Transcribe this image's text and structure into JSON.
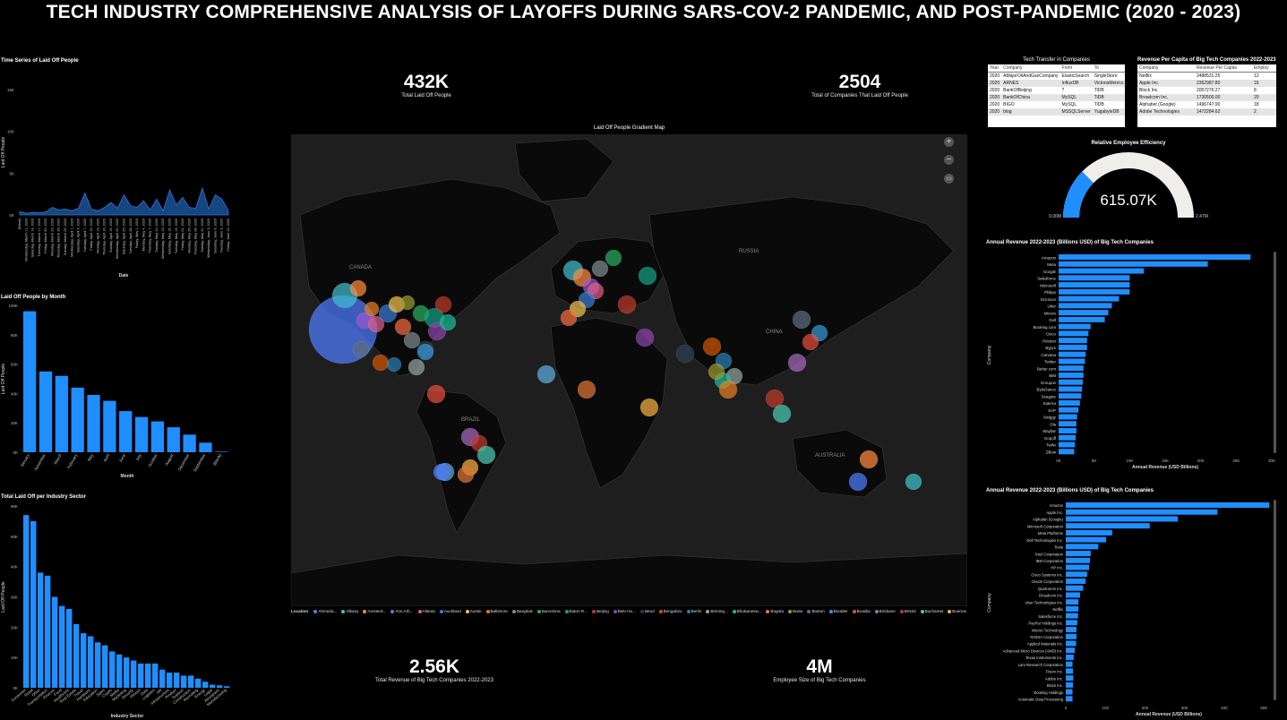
{
  "title": "TECH INDUSTRY COMPREHENSIVE ANALYSIS OF LAYOFFS DURING SARS-COV-2 PANDEMIC, AND POST-PANDEMIC (2020 - 2023)",
  "kpis": {
    "total_laid_off": {
      "value": "432K",
      "label": "Total Laid Off People"
    },
    "companies": {
      "value": "2504",
      "label": "Total of Companies That Laid Off People"
    },
    "revenue": {
      "value": "2.56K",
      "label": "Total Revenue of Big Tech Companies 2022-2023"
    },
    "employees": {
      "value": "4M",
      "label": "Employee Size of Big Tech Companies"
    }
  },
  "map": {
    "title": "Laid Off People Gradient Map",
    "labels": [
      "CANADA",
      "RUSSIA",
      "CHINA",
      "BRAZIL",
      "AUSTRALIA"
    ],
    "legend_title": "Location",
    "legend": [
      {
        "name": "Ahmeda...",
        "color": "#4f7dff"
      },
      {
        "name": "Albany",
        "color": "#3fbfcf"
      },
      {
        "name": "Amsterd...",
        "color": "#ff8a3d"
      },
      {
        "name": "Ann Arb...",
        "color": "#9b59d0"
      },
      {
        "name": "Atlanta",
        "color": "#e05c8a"
      },
      {
        "name": "Auckland",
        "color": "#3a7bd5"
      },
      {
        "name": "Austin",
        "color": "#f2c14e"
      },
      {
        "name": "Baltimore",
        "color": "#f26b3a"
      },
      {
        "name": "Bangkok",
        "color": "#7f8c8d"
      },
      {
        "name": "Barcelona",
        "color": "#27ae60"
      },
      {
        "name": "Baton R...",
        "color": "#16a085"
      },
      {
        "name": "Beijing",
        "color": "#c0392b"
      },
      {
        "name": "Belo Ho...",
        "color": "#8e44ad"
      },
      {
        "name": "Bend",
        "color": "#2c3e50"
      },
      {
        "name": "Bengaluru",
        "color": "#d35400"
      },
      {
        "name": "Berlin",
        "color": "#2980b9"
      },
      {
        "name": "Birming...",
        "color": "#95a5a6"
      },
      {
        "name": "Bhubanesw...",
        "color": "#1abc9c"
      },
      {
        "name": "Bogota",
        "color": "#e67e22"
      },
      {
        "name": "Boise",
        "color": "#9b9b2f"
      },
      {
        "name": "Boston",
        "color": "#5d6d7e"
      },
      {
        "name": "Boulder",
        "color": "#3498db"
      },
      {
        "name": "Brasilia",
        "color": "#e74c3c"
      },
      {
        "name": "Brisbane",
        "color": "#a569bd"
      },
      {
        "name": "Bristol",
        "color": "#c0392b"
      },
      {
        "name": "Bucharest",
        "color": "#48c9b0"
      },
      {
        "name": "Buenos...",
        "color": "#f5b041"
      },
      {
        "name": "Burlingt...",
        "color": "#dc7633"
      },
      {
        "name": "Calgary",
        "color": "#5dade2"
      }
    ]
  },
  "time_series": {
    "title": "Time Series of Laid Off People",
    "ylabel": "Laid Off People",
    "xlabel": "Date",
    "yticks": [
      "15K",
      "10K",
      "5K",
      "0K"
    ],
    "dates": [
      "(Blank)",
      "Wednesday, March 11, 2020",
      "Saturday, March 14, 2020",
      "Tuesday, March 17, 2020",
      "Friday, March 20, 2020",
      "Monday, March 23, 2020",
      "Thursday, March 26, 2020",
      "Sunday, March 29, 2020",
      "Wednesday, April 1, 2020",
      "Saturday, April 4, 2020",
      "Tuesday, April 7, 2020",
      "Friday, April 10, 2020",
      "Monday, April 13, 2020",
      "Thursday, April 16, 2020",
      "Sunday, April 19, 2020",
      "Wednesday, April 22, 2020",
      "Saturday, April 25, 2020",
      "Tuesday, April 28, 2020",
      "Friday, May 1, 2020",
      "Monday, May 4, 2020",
      "Thursday, May 7, 2020",
      "Sunday, May 10, 2020",
      "Wednesday, May 13, 2020",
      "Saturday, May 16, 2020",
      "Tuesday, May 19, 2020",
      "Friday, May 22, 2020",
      "Monday, May 25, 2020",
      "Thursday, May 28, 2020",
      "Sunday, May 31, 2020",
      "Wednesday, June 3, 2020",
      "Saturday, June 6, 2020",
      "Tuesday, June 9, 2020",
      "Friday, June 12, 2020"
    ],
    "values": [
      400,
      200,
      300,
      250,
      350,
      900,
      600,
      700,
      500,
      800,
      2600,
      700,
      500,
      900,
      1500,
      800,
      2400,
      1100,
      900,
      1700,
      600,
      1900,
      500,
      3000,
      1200,
      2100,
      900,
      800,
      3200,
      700,
      2400,
      1900,
      500
    ]
  },
  "by_month": {
    "title": "Laid Off People by Month",
    "ylabel": "Laid Off People",
    "xlabel": "Month",
    "yticks": [
      "100K",
      "80K",
      "60K",
      "40K",
      "20K",
      "0K"
    ],
    "categories": [
      "January",
      "November",
      "March",
      "February",
      "May",
      "April",
      "June",
      "July",
      "October",
      "August",
      "December",
      "September",
      "(Blank)"
    ],
    "values": [
      96000,
      55000,
      52000,
      44000,
      39000,
      35000,
      28000,
      24000,
      21000,
      17000,
      12000,
      6500,
      400
    ]
  },
  "by_industry": {
    "title": "Total Laid Off per Industry Sector",
    "ylabel": "Laid Off People",
    "xlabel": "Industry Sector",
    "yticks": [
      "60K",
      "50K",
      "40K",
      "30K",
      "20K",
      "10K",
      "0K"
    ],
    "categories": [
      "Consumer",
      "Retail",
      "Other",
      "Transportation",
      "Finance",
      "Food",
      "Healthcare",
      "Real Estate",
      "Travel",
      "Hardware",
      "Education",
      "Sales",
      "Crypto",
      "Media",
      "Marketing",
      "Security",
      "Fitness",
      "Data",
      "Logistics",
      "HR",
      "Infrastructure",
      "Product",
      "Support",
      "Construction",
      "Recruiting",
      "Energy",
      "Legal",
      "Aerospace",
      "Manufacturing"
    ],
    "values": [
      57000,
      55000,
      38000,
      37000,
      30000,
      27000,
      26000,
      21000,
      18000,
      17000,
      15000,
      14000,
      12000,
      11000,
      10000,
      9000,
      8000,
      8000,
      8000,
      6000,
      5000,
      5000,
      4000,
      4000,
      3000,
      2000,
      1000,
      800,
      500
    ]
  },
  "transfer_table": {
    "title": "Tech Transfer in Companies",
    "headers": [
      "Year",
      "Company",
      "From",
      "To"
    ],
    "rows": [
      [
        "2020",
        "AMajorOilAndGasCompany",
        "ElasticSearch",
        "SingleStore"
      ],
      [
        "2020",
        "ARNES",
        "InfluxDB",
        "VictoriaMetrics"
      ],
      [
        "2020",
        "BankOfBeijing",
        "?",
        "TiDB"
      ],
      [
        "2020",
        "BankOfChina",
        "MySQL",
        "TiDB"
      ],
      [
        "2020",
        "BIGO",
        "MySQL",
        "TiDB"
      ],
      [
        "2020",
        "blog",
        "MSSQLServer",
        "YugabyteDB"
      ]
    ]
  },
  "revenue_capita_table": {
    "title": "Revenue Per Capita of Big Tech Companies 2022-2023",
    "headers": [
      "Company",
      "Revenue Per Capita",
      "Employ"
    ],
    "rows": [
      [
        "Netflix",
        "2488531.25",
        "12"
      ],
      [
        "Apple Inc.",
        "2362987.80",
        "16"
      ],
      [
        "Block Inc.",
        "2057276.27",
        "8"
      ],
      [
        "Broadcom Inc.",
        "1730500.00",
        "20"
      ],
      [
        "Alphabet (Google)",
        "1496747.90",
        "18"
      ],
      [
        "Adobe Technologies",
        "1472284.62",
        "2"
      ]
    ]
  },
  "gauge": {
    "title": "Relative Employee Efficiency",
    "value": "615.07K",
    "min": "0.00M",
    "max": "2.47M",
    "fraction": 0.249,
    "fill_color": "#1f8fff",
    "track_color": "#f0eeea"
  },
  "annual_rev_1": {
    "title": "Annual Revenue 2022-2023 (Billions USD) of Big Tech Companies",
    "ylabel": "Company",
    "xlabel": "Annual Revenue (USD Billions)",
    "xticks": [
      "0K",
      "5K",
      "10K",
      "15K",
      "20K",
      "25K",
      "30K"
    ],
    "xmax": 30000,
    "categories": [
      "Amazon",
      "Meta",
      "Google",
      "Salesforce",
      "Microsoft",
      "Philips",
      "Ericsson",
      "Uber",
      "Micron",
      "Dell",
      "Booking.com",
      "Cisco",
      "Peloton",
      "Byju's",
      "Carvana",
      "Twitter",
      "Better.com",
      "IBM",
      "Groupon",
      "ByteDance",
      "Seagate",
      "Katerra",
      "SAP",
      "Swiggy",
      "Ola",
      "Wayfair",
      "Gopuff",
      "Twilio",
      "Zillow"
    ],
    "values": [
      27000,
      21000,
      12000,
      10000,
      10000,
      10000,
      8500,
      7500,
      7000,
      6500,
      4500,
      4200,
      4000,
      4000,
      3800,
      3700,
      3500,
      3500,
      3400,
      3300,
      3200,
      3000,
      2800,
      2600,
      2500,
      2500,
      2400,
      2300,
      2200
    ]
  },
  "annual_rev_2": {
    "title": "Annual Revenue 2022-2023 (Billions USD) of Big Tech Companies",
    "ylabel": "Company",
    "xlabel": "Annual Revenue (USD Billions)",
    "xticks": [
      "0",
      "100",
      "200",
      "300",
      "400",
      "500"
    ],
    "xmax": 520,
    "categories": [
      "Amazon",
      "Apple Inc.",
      "Alphabet (Google)",
      "Microsoft Corporation",
      "Meta Platforms",
      "Dell Technologies Inc.",
      "Tesla",
      "Intel Corporation",
      "IBM Corporation",
      "HP Inc.",
      "Cisco Systems Inc.",
      "Oracle Corporation",
      "Qualcomm Inc.",
      "Broadcom Inc.",
      "Uber Technologies Inc.",
      "Netflix",
      "Salesforce Inc.",
      "PayPal Holdings Inc.",
      "Micron Technology",
      "NVIDIA Corporation",
      "Applied Materials Inc.",
      "Advanced Micro Devices (AMD) Inc.",
      "Texas Instruments Inc.",
      "Lam Research Corporation",
      "Fiserv Inc.",
      "Adobe Inc.",
      "Block Inc.",
      "Booking Holdings",
      "Automatic Data Processing"
    ],
    "values": [
      514,
      383,
      283,
      212,
      117,
      102,
      82,
      63,
      61,
      59,
      54,
      50,
      44,
      36,
      32,
      32,
      31,
      29,
      27,
      27,
      26,
      23,
      20,
      17,
      18,
      19,
      18,
      17,
      17
    ]
  }
}
